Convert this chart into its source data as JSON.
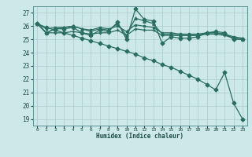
{
  "xlabel": "Humidex (Indice chaleur)",
  "xlim": [
    -0.5,
    23.5
  ],
  "ylim": [
    18.5,
    27.5
  ],
  "yticks": [
    19,
    20,
    21,
    22,
    23,
    24,
    25,
    26,
    27
  ],
  "xticks": [
    0,
    1,
    2,
    3,
    4,
    5,
    6,
    7,
    8,
    9,
    10,
    11,
    12,
    13,
    14,
    15,
    16,
    17,
    18,
    19,
    20,
    21,
    22,
    23
  ],
  "bg_color": "#cce8e8",
  "grid_color": "#aacccc",
  "line_color": "#2a6e60",
  "series": [
    {
      "x": [
        0,
        1,
        2,
        3,
        4,
        5,
        6,
        7,
        8,
        9,
        10,
        11,
        12,
        13,
        14,
        15,
        16,
        17,
        18,
        19,
        20,
        21,
        22,
        23
      ],
      "y": [
        26.2,
        25.5,
        25.8,
        25.8,
        25.9,
        25.5,
        25.3,
        25.7,
        25.6,
        26.3,
        25.0,
        27.3,
        26.5,
        26.4,
        24.7,
        25.2,
        25.1,
        25.1,
        25.2,
        25.5,
        25.6,
        25.5,
        25.0,
        25.0
      ],
      "marker": "D",
      "markersize": 2.5,
      "linewidth": 0.9
    },
    {
      "x": [
        0,
        1,
        2,
        3,
        4,
        5,
        6,
        7,
        8,
        9,
        10,
        11,
        12,
        13,
        14,
        15,
        16,
        17,
        18,
        19,
        20,
        21,
        22,
        23
      ],
      "y": [
        26.2,
        25.5,
        25.8,
        25.9,
        26.0,
        25.8,
        25.6,
        25.8,
        25.7,
        26.2,
        25.3,
        26.6,
        26.4,
        26.2,
        25.4,
        25.4,
        25.3,
        25.3,
        25.3,
        25.5,
        25.5,
        25.4,
        25.1,
        25.0
      ],
      "marker": "^",
      "markersize": 2.5,
      "linewidth": 0.9
    },
    {
      "x": [
        0,
        1,
        2,
        3,
        4,
        5,
        6,
        7,
        8,
        9,
        10,
        11,
        12,
        13,
        14,
        15,
        16,
        17,
        18,
        19,
        20,
        21,
        22,
        23
      ],
      "y": [
        26.2,
        25.8,
        25.9,
        25.9,
        26.0,
        25.8,
        25.7,
        25.9,
        25.8,
        26.0,
        25.6,
        26.1,
        26.0,
        25.9,
        25.5,
        25.5,
        25.4,
        25.4,
        25.4,
        25.5,
        25.5,
        25.4,
        25.2,
        25.1
      ],
      "marker": "s",
      "markersize": 1.5,
      "linewidth": 0.9
    },
    {
      "x": [
        0,
        1,
        2,
        3,
        4,
        5,
        6,
        7,
        8,
        9,
        10,
        11,
        12,
        13,
        14,
        15,
        16,
        17,
        18,
        19,
        20,
        21,
        22,
        23
      ],
      "y": [
        26.2,
        25.5,
        25.5,
        25.5,
        25.6,
        25.5,
        25.4,
        25.5,
        25.5,
        25.7,
        25.3,
        25.8,
        25.7,
        25.7,
        25.3,
        25.3,
        25.3,
        25.3,
        25.3,
        25.4,
        25.4,
        25.3,
        25.1,
        25.0
      ],
      "marker": "+",
      "markersize": 3,
      "linewidth": 0.9
    },
    {
      "x": [
        0,
        1,
        2,
        3,
        4,
        5,
        6,
        7,
        8,
        9,
        10,
        11,
        12,
        13,
        14,
        15,
        16,
        17,
        18,
        19,
        20,
        21,
        22,
        23
      ],
      "y": [
        26.2,
        25.9,
        25.7,
        25.5,
        25.3,
        25.1,
        24.9,
        24.7,
        24.5,
        24.3,
        24.1,
        23.9,
        23.6,
        23.4,
        23.1,
        22.9,
        22.6,
        22.3,
        22.0,
        21.6,
        21.2,
        22.5,
        20.2,
        19.0
      ],
      "marker": "D",
      "markersize": 2.5,
      "linewidth": 0.9
    }
  ]
}
